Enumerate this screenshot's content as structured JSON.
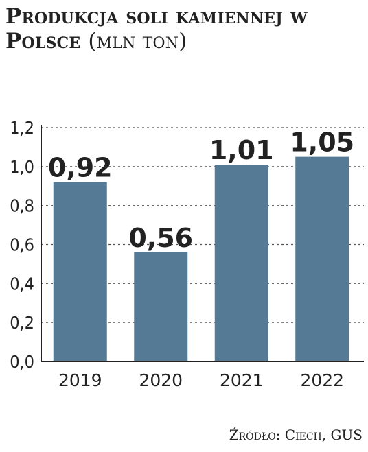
{
  "title": {
    "main": "Produkcja soli kamiennej w Polsce",
    "unit": "(mln ton)"
  },
  "source": "Źródło: Ciech, GUS",
  "colors": {
    "bar": "#547a96",
    "axis": "#222222",
    "grid": "#555555"
  },
  "chart_data": {
    "type": "bar",
    "title": "Produkcja soli kamiennej w Polsce (mln ton)",
    "categories": [
      "2019",
      "2020",
      "2021",
      "2022"
    ],
    "values": [
      0.92,
      0.56,
      1.01,
      1.05
    ],
    "data_labels": [
      "0,92",
      "0,56",
      "1,01",
      "1,05"
    ],
    "y_ticks": [
      0.0,
      0.2,
      0.4,
      0.6,
      0.8,
      1.0,
      1.2
    ],
    "y_tick_labels": [
      "0,0",
      "0,2",
      "0,4",
      "0,6",
      "0,8",
      "1,0",
      "1,2"
    ],
    "ylim": [
      0,
      1.2
    ],
    "grid": true,
    "legend": false
  }
}
